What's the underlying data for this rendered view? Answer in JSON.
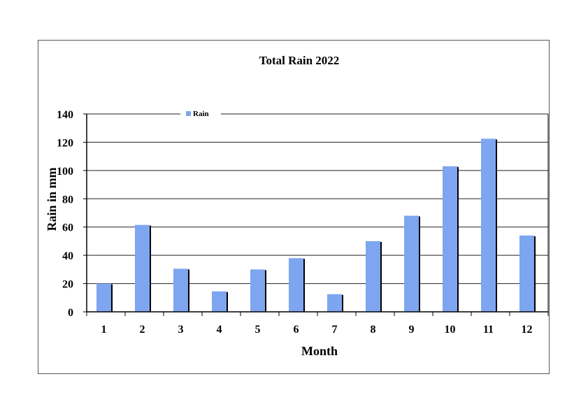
{
  "chart_data": {
    "type": "bar",
    "title": "Total Rain 2022",
    "xlabel": "Month",
    "ylabel": "Rain in mm",
    "categories": [
      "1",
      "2",
      "3",
      "4",
      "5",
      "6",
      "7",
      "8",
      "9",
      "10",
      "11",
      "12"
    ],
    "series": [
      {
        "name": "Rain",
        "color": "#7ea6f0",
        "values": [
          20,
          61.5,
          30.5,
          14.5,
          30,
          38,
          12.5,
          50,
          68,
          103,
          122.5,
          54
        ]
      }
    ],
    "yticks": [
      "0",
      "20",
      "40",
      "60",
      "80",
      "100",
      "120",
      "140"
    ],
    "ylim": [
      0,
      140
    ],
    "grid": true,
    "legend_position": "top-left"
  }
}
